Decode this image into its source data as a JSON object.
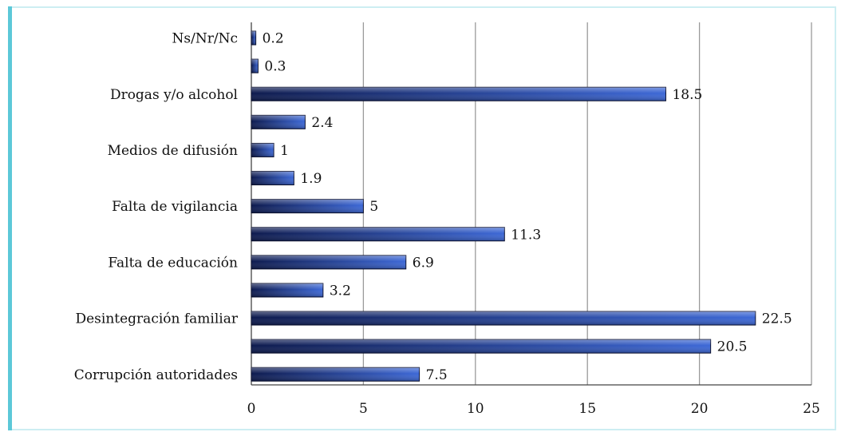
{
  "chart_data": {
    "type": "bar",
    "orientation": "horizontal",
    "categories": [
      "Ns/Nr/Nc",
      "",
      "Drogas y/o alcohol",
      "",
      "Medios de difusión",
      "",
      "Falta de vigilancia",
      "",
      "Falta de educación",
      "",
      "Desintegración familiar",
      "",
      "Corrupción autoridades"
    ],
    "values": [
      0.2,
      0.3,
      18.5,
      2.4,
      1,
      1.9,
      5,
      11.3,
      6.9,
      3.2,
      22.5,
      20.5,
      7.5
    ],
    "value_labels": [
      "0.2",
      "0.3",
      "18.5",
      "2.4",
      "1",
      "1.9",
      "5",
      "11.3",
      "6.9",
      "3.2",
      "22.5",
      "20.5",
      "7.5"
    ],
    "xlim": [
      0,
      25
    ],
    "xticks": [
      "0",
      "5",
      "10",
      "15",
      "20",
      "25"
    ],
    "grid": true,
    "legend": "none",
    "title": "",
    "xlabel": "",
    "ylabel": "",
    "bar_color_dark": "#0d1a4e",
    "bar_color_light": "#3d68d6",
    "grid_color": "#9a9a9a"
  }
}
